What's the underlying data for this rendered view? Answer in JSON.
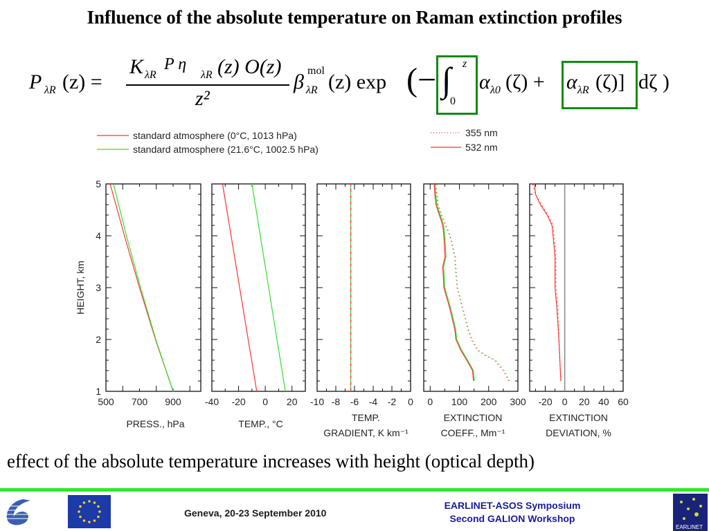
{
  "slide": {
    "title": "Influence of the absolute temperature on Raman extinction profiles",
    "formula": {
      "lhs": "P",
      "lhs_sub": "λR",
      "lhs_arg": "(z) =",
      "numerator": "K",
      "num_sub": "λR",
      "num_rest": "P η",
      "num_rest_sub": "λR",
      "num_tail": "(z) O(z)",
      "denominator": "z²",
      "beta": "β",
      "beta_sup": "mol",
      "beta_sub": "λR",
      "exp_part": "(z) exp",
      "open": "(−",
      "integral": "∫",
      "int_upper": "z",
      "int_lower": "0",
      "alpha0": "α",
      "alpha0_sub": "λ0",
      "alpha0_arg": "(ζ) +",
      "alphaR": "α",
      "alphaR_sub": "λR",
      "alphaR_arg": "(ζ)]",
      "dzeta": "dζ )",
      "highlight_color": "#138a13"
    },
    "legend_left": [
      {
        "label": "standard atmosphere (0°C, 1013 hPa)",
        "color": "#ff3030"
      },
      {
        "label": "standard atmosphere (21.6°C, 1002.5 hPa)",
        "color": "#30e030"
      }
    ],
    "legend_right": [
      {
        "label": "355 nm",
        "style": "dotted"
      },
      {
        "label": "532 nm",
        "style": "solid"
      }
    ],
    "caption": "effect of the absolute temperature increases with height (optical depth)",
    "footer": {
      "date_place": "Geneva, 20-23 September 2010",
      "event_line1": "EARLINET-ASOS Symposium",
      "event_line2": "Second GALION Workshop",
      "logo_right_text": "EARLINET",
      "bar_color": "#2ee82e"
    }
  },
  "chart_data": [
    {
      "type": "line",
      "ylabel": "HEIGHT, km",
      "ylim": [
        1,
        5
      ],
      "yticks": [
        1,
        2,
        3,
        4,
        5
      ],
      "xlabel": [
        "PRESS., hPa"
      ],
      "xlim": [
        500,
        1065
      ],
      "xticks": [
        500,
        700,
        900
      ],
      "series": [
        {
          "color": "#ff3030",
          "style": "solid",
          "x": [
            900,
            795,
            700,
            610,
            525
          ],
          "y": [
            1,
            2,
            3,
            4,
            5
          ]
        },
        {
          "color": "#30e030",
          "style": "solid",
          "x": [
            900,
            797,
            706,
            622,
            545
          ],
          "y": [
            1,
            2,
            3,
            4,
            5
          ]
        }
      ]
    },
    {
      "type": "line",
      "ylim": [
        1,
        5
      ],
      "xlabel": [
        "TEMP., °C"
      ],
      "xlim": [
        -40,
        30
      ],
      "xticks": [
        -40,
        -20,
        0,
        20
      ],
      "series": [
        {
          "color": "#ff3030",
          "style": "solid",
          "x": [
            -6.4,
            -32
          ],
          "y": [
            1,
            5
          ]
        },
        {
          "color": "#30e030",
          "style": "solid",
          "x": [
            15,
            -10
          ],
          "y": [
            1,
            5
          ]
        }
      ]
    },
    {
      "type": "line",
      "ylim": [
        1,
        5
      ],
      "xlabel": [
        "TEMP.",
        "GRADIENT, K km⁻¹"
      ],
      "xlim": [
        -10,
        0
      ],
      "xticks": [
        -10,
        -8,
        -6,
        -4,
        -2,
        0
      ],
      "series": [
        {
          "color": "#30e030",
          "style": "solid",
          "x": [
            -6.4,
            -6.4
          ],
          "y": [
            1,
            5
          ]
        },
        {
          "color": "#ff3030",
          "style": "dashed",
          "x": [
            -6.4,
            -6.4
          ],
          "y": [
            1,
            5
          ]
        }
      ]
    },
    {
      "type": "line",
      "ylim": [
        1,
        5
      ],
      "xlabel": [
        "EXTINCTION",
        "COEFF., Mm⁻¹"
      ],
      "xlim": [
        -22,
        300
      ],
      "xticks": [
        0,
        100,
        200,
        300
      ],
      "series": [
        {
          "color": "#30e030",
          "style": "solid",
          "y": [
            1.2,
            1.4,
            1.6,
            1.8,
            2.0,
            2.2,
            2.6,
            3.0,
            3.4,
            3.6,
            4.0,
            4.2,
            4.6,
            4.8,
            5.0
          ],
          "x": [
            151,
            148,
            128,
            107,
            91,
            87,
            70,
            50,
            46,
            54,
            50,
            46,
            23,
            19,
            17
          ]
        },
        {
          "color": "#ff3030",
          "style": "solid",
          "y": [
            1.2,
            1.4,
            1.6,
            1.8,
            2.0,
            2.2,
            2.6,
            3.0,
            3.4,
            3.6,
            4.0,
            4.2,
            4.6,
            4.8,
            5.0
          ],
          "x": [
            148,
            145,
            125,
            104,
            88,
            84,
            67,
            47,
            43,
            51,
            47,
            43,
            20,
            16,
            14
          ]
        },
        {
          "color": "#30e030",
          "style": "dotted",
          "y": [
            1.2,
            1.4,
            1.6,
            1.7,
            1.8,
            2.0,
            2.2,
            2.6,
            3.0,
            3.4,
            3.6,
            4.0,
            4.4,
            4.6,
            5.0
          ],
          "x": [
            272,
            254,
            224,
            190,
            163,
            143,
            131,
            112,
            94,
            88,
            86,
            69,
            40,
            28,
            20
          ]
        },
        {
          "color": "#ff3030",
          "style": "dotted",
          "y": [
            1.2,
            1.4,
            1.6,
            1.7,
            1.8,
            2.0,
            2.2,
            2.6,
            3.0,
            3.4,
            3.6,
            4.0,
            4.4,
            4.6,
            5.0
          ],
          "x": [
            268,
            250,
            220,
            186,
            160,
            141,
            129,
            110,
            92,
            86,
            84,
            67,
            38,
            26,
            18
          ]
        }
      ]
    },
    {
      "type": "line",
      "ylim": [
        1,
        5
      ],
      "xlabel": [
        "EXTINCTION",
        "DEVIATION, %"
      ],
      "xlim": [
        -36,
        60
      ],
      "xticks": [
        -20,
        0,
        20,
        40,
        60
      ],
      "reference_line": {
        "x": 0,
        "color": "#888888"
      },
      "series": [
        {
          "color": "#ff3030",
          "style": "dotted",
          "y": [
            1.2,
            1.6,
            2.0,
            2.6,
            3.0,
            3.4,
            3.6,
            4.0,
            4.2,
            4.4,
            4.6,
            4.8,
            5.0
          ],
          "x": [
            -4,
            -5,
            -6,
            -7,
            -9,
            -9,
            -9,
            -11,
            -12,
            -17,
            -24,
            -30,
            -33
          ]
        },
        {
          "color": "#ff3030",
          "style": "solid",
          "y": [
            1.2,
            1.6,
            2.0,
            2.6,
            3.0,
            3.4,
            3.6,
            4.0,
            4.2,
            4.4,
            4.6,
            4.8,
            5.0
          ],
          "x": [
            -4,
            -5,
            -6,
            -8,
            -10,
            -10,
            -10,
            -12,
            -13,
            -18,
            -25,
            -30,
            -31
          ]
        }
      ]
    }
  ]
}
